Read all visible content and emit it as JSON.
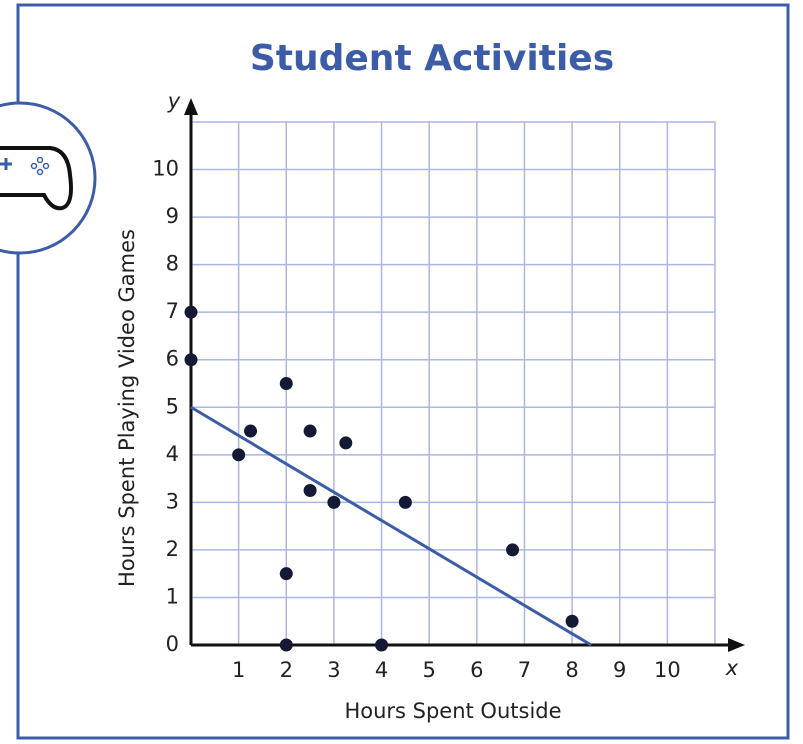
{
  "chart_data": {
    "type": "scatter",
    "title": "Student Activities",
    "x_label": "Hours Spent Outside",
    "y_label": "Hours Spent Playing Video Games",
    "x_axis_letter": "x",
    "y_axis_letter": "y",
    "x": [
      0,
      0,
      1,
      1.25,
      2,
      2,
      2,
      2.5,
      2.5,
      3,
      3.25,
      4,
      4.5,
      6.75,
      8
    ],
    "values": [
      7,
      6,
      4,
      4.5,
      5.5,
      1.5,
      0,
      4.5,
      3.25,
      3,
      4.25,
      0,
      3,
      2,
      0.5
    ],
    "color": "#141a36",
    "trend_line": {
      "x": [
        0,
        8.4
      ],
      "y": [
        5,
        0
      ],
      "color": "#3d5ca8"
    },
    "xlim": [
      0,
      11
    ],
    "ylim": [
      0,
      11
    ],
    "xticks": [
      1,
      2,
      3,
      4,
      5,
      6,
      7,
      8,
      9,
      10
    ],
    "yticks": [
      0,
      1,
      2,
      3,
      4,
      5,
      6,
      7,
      8,
      9,
      10
    ],
    "grid": true
  }
}
